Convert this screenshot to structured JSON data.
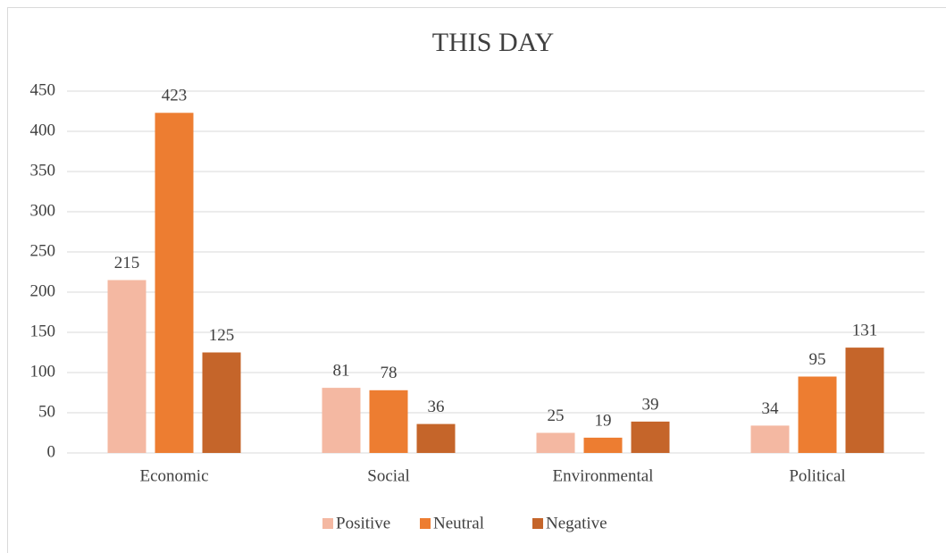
{
  "chart_data": {
    "type": "bar",
    "title": "THIS DAY",
    "categories": [
      "Economic",
      "Social",
      "Environmental",
      "Political"
    ],
    "series": [
      {
        "name": "Positive",
        "color": "#f4b8a2",
        "values": [
          215,
          81,
          25,
          34
        ]
      },
      {
        "name": "Neutral",
        "color": "#ed7d31",
        "values": [
          423,
          78,
          19,
          95
        ]
      },
      {
        "name": "Negative",
        "color": "#c5652a",
        "values": [
          125,
          36,
          39,
          131
        ]
      }
    ],
    "ylim": [
      0,
      450
    ],
    "yticks": [
      0,
      50,
      100,
      150,
      200,
      250,
      300,
      350,
      400,
      450
    ],
    "grid": true,
    "legend": "bottom"
  }
}
